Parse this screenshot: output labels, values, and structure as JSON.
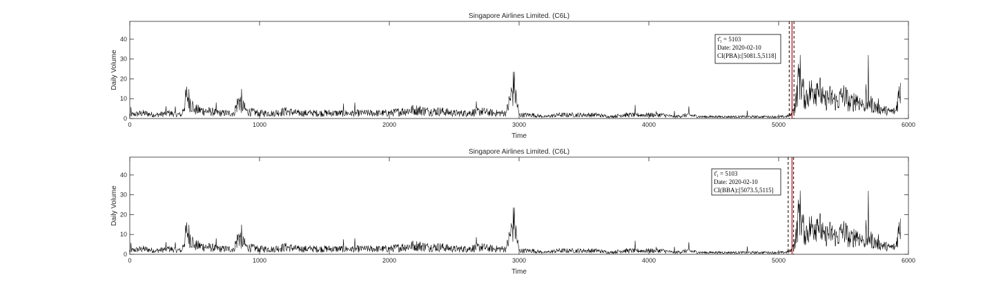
{
  "chart_data": [
    {
      "type": "line",
      "title": "Singapore Airlines Limited. (C6L)",
      "xlabel": "Time",
      "ylabel": "Daily Volume",
      "xlim": [
        0,
        6000
      ],
      "ylim": [
        0,
        49
      ],
      "x_ticks": [
        "0",
        "1000",
        "2000",
        "3000",
        "4000",
        "5000",
        "6000"
      ],
      "y_ticks": [
        "0",
        "10",
        "20",
        "30",
        "40"
      ],
      "grid": false,
      "series": [
        {
          "x": [
            0,
            100,
            200,
            300,
            400,
            440,
            500,
            600,
            700,
            800,
            840,
            900,
            1000,
            1100,
            1200,
            1300,
            1400,
            1500,
            1600,
            1700,
            1800,
            1900,
            2000,
            2100,
            2200,
            2300,
            2400,
            2500,
            2600,
            2700,
            2800,
            2900,
            2960,
            3000,
            3100,
            3200,
            3300,
            3400,
            3500,
            3600,
            3700,
            3800,
            3900,
            4000,
            4100,
            4200,
            4300,
            4400,
            4500,
            4600,
            4700,
            4800,
            4900,
            5000,
            5050,
            5100,
            5130,
            5160,
            5200,
            5250,
            5300,
            5350,
            5400,
            5450,
            5500,
            5550,
            5600,
            5650,
            5700,
            5750,
            5800,
            5850,
            5900,
            5940
          ],
          "y": [
            2,
            3,
            2,
            3,
            2,
            13,
            5,
            4,
            3,
            3,
            10,
            4,
            3,
            3,
            4,
            3,
            3,
            3,
            3,
            3,
            3,
            3,
            3,
            4,
            5,
            4,
            4,
            3,
            3,
            4,
            3,
            3,
            18,
            2,
            2,
            1,
            2,
            2,
            2,
            2,
            1,
            2,
            2,
            2,
            2,
            1,
            2,
            1,
            1,
            1,
            1,
            1,
            1,
            1,
            1,
            2,
            8,
            25,
            12,
            15,
            18,
            10,
            12,
            9,
            14,
            8,
            11,
            7,
            9,
            6,
            5,
            4,
            4,
            18
          ],
          "color": "#000000"
        }
      ],
      "changepoint": {
        "value": 5103,
        "color": "#cc0000"
      },
      "ci": [
        5081.5,
        5118
      ],
      "annotation": {
        "lines": [
          "τ̂₁ = 5103",
          "Date:  2020-02-10",
          "CI(PBA):[5081.5,5118]"
        ]
      }
    },
    {
      "type": "line",
      "title": "Singapore Airlines Limited. (C6L)",
      "xlabel": "Time",
      "ylabel": "Daily Volume",
      "xlim": [
        0,
        6000
      ],
      "ylim": [
        0,
        49
      ],
      "x_ticks": [
        "0",
        "1000",
        "2000",
        "3000",
        "4000",
        "5000",
        "6000"
      ],
      "y_ticks": [
        "0",
        "10",
        "20",
        "30",
        "40"
      ],
      "grid": false,
      "series": [
        {
          "x": [
            0,
            100,
            200,
            300,
            400,
            440,
            500,
            600,
            700,
            800,
            840,
            900,
            1000,
            1100,
            1200,
            1300,
            1400,
            1500,
            1600,
            1700,
            1800,
            1900,
            2000,
            2100,
            2200,
            2300,
            2400,
            2500,
            2600,
            2700,
            2800,
            2900,
            2960,
            3000,
            3100,
            3200,
            3300,
            3400,
            3500,
            3600,
            3700,
            3800,
            3900,
            4000,
            4100,
            4200,
            4300,
            4400,
            4500,
            4600,
            4700,
            4800,
            4900,
            5000,
            5050,
            5100,
            5130,
            5160,
            5200,
            5250,
            5300,
            5350,
            5400,
            5450,
            5500,
            5550,
            5600,
            5650,
            5700,
            5750,
            5800,
            5850,
            5900,
            5940
          ],
          "y": [
            2,
            3,
            2,
            3,
            2,
            13,
            5,
            4,
            3,
            3,
            10,
            4,
            3,
            3,
            4,
            3,
            3,
            3,
            3,
            3,
            3,
            3,
            3,
            4,
            5,
            4,
            4,
            3,
            3,
            4,
            3,
            3,
            18,
            2,
            2,
            1,
            2,
            2,
            2,
            2,
            1,
            2,
            2,
            2,
            2,
            1,
            2,
            1,
            1,
            1,
            1,
            1,
            1,
            1,
            1,
            2,
            8,
            25,
            12,
            15,
            18,
            10,
            12,
            9,
            14,
            8,
            11,
            7,
            9,
            6,
            5,
            4,
            4,
            18
          ],
          "color": "#000000"
        }
      ],
      "changepoint": {
        "value": 5103,
        "color": "#cc0000"
      },
      "ci": [
        5073.5,
        5115
      ],
      "annotation": {
        "lines": [
          "τ̂₁ = 5103",
          "Date:  2020-02-10",
          "CI(BBA):[5073.5,5115]"
        ]
      }
    }
  ]
}
